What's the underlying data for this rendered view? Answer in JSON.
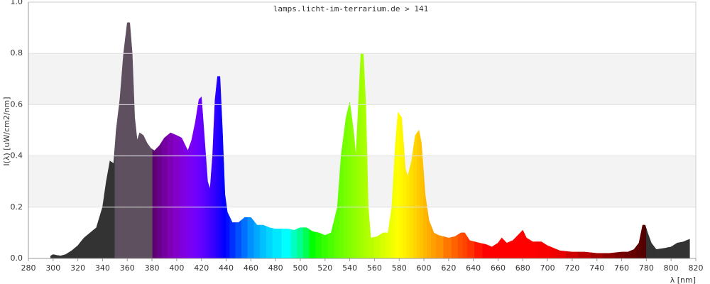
{
  "chart_data": {
    "type": "area",
    "title": "lamps.licht-im-terrarium.de > 141",
    "x_label": "λ [nm]",
    "y_label": "I(λ)  [uW/cm2/nm]",
    "xlim": [
      280,
      820
    ],
    "xticks": [
      280,
      300,
      320,
      340,
      360,
      380,
      400,
      420,
      440,
      460,
      480,
      500,
      520,
      540,
      560,
      580,
      600,
      620,
      640,
      660,
      680,
      700,
      720,
      740,
      760,
      780,
      800,
      820
    ],
    "ylim": [
      0,
      1
    ],
    "yticks": [
      {
        "value": 0,
        "label": "0.0"
      },
      0.2,
      0.4,
      0.6,
      0.8,
      {
        "value": 1,
        "label": "1.0"
      }
    ],
    "grid": true,
    "x": [
      298,
      300,
      303,
      306,
      310,
      315,
      320,
      325,
      330,
      335,
      340,
      343,
      346,
      349,
      351,
      354,
      357,
      360,
      362,
      364,
      366,
      368,
      370,
      373,
      376,
      379,
      382,
      386,
      390,
      395,
      400,
      404,
      407,
      409,
      412,
      415,
      418,
      420,
      422,
      425,
      427,
      429,
      431,
      433,
      435,
      437,
      439,
      441,
      445,
      450,
      455,
      460,
      465,
      470,
      475,
      480,
      490,
      495,
      500,
      505,
      510,
      515,
      520,
      525,
      530,
      533,
      537,
      540,
      543,
      545,
      547,
      549,
      551,
      553,
      555,
      557,
      562,
      567,
      571,
      574,
      577,
      579,
      582,
      585,
      587,
      590,
      593,
      596,
      598,
      601,
      604,
      608,
      612,
      620,
      625,
      630,
      633,
      637,
      645,
      650,
      655,
      660,
      663,
      667,
      672,
      678,
      680,
      683,
      688,
      695,
      700,
      705,
      710,
      720,
      730,
      740,
      750,
      760,
      765,
      770,
      774,
      777,
      779,
      781,
      784,
      788,
      795,
      800,
      805,
      810,
      815
    ],
    "values": [
      0.01,
      0.015,
      0.012,
      0.01,
      0.015,
      0.03,
      0.05,
      0.08,
      0.1,
      0.12,
      0.2,
      0.3,
      0.38,
      0.37,
      0.5,
      0.62,
      0.8,
      0.92,
      0.92,
      0.8,
      0.55,
      0.46,
      0.49,
      0.48,
      0.45,
      0.43,
      0.42,
      0.44,
      0.47,
      0.49,
      0.48,
      0.47,
      0.44,
      0.42,
      0.46,
      0.53,
      0.62,
      0.63,
      0.5,
      0.3,
      0.27,
      0.4,
      0.62,
      0.71,
      0.71,
      0.5,
      0.25,
      0.18,
      0.14,
      0.14,
      0.16,
      0.16,
      0.13,
      0.13,
      0.12,
      0.115,
      0.115,
      0.11,
      0.12,
      0.12,
      0.105,
      0.1,
      0.09,
      0.1,
      0.2,
      0.4,
      0.55,
      0.61,
      0.5,
      0.4,
      0.6,
      0.8,
      0.8,
      0.6,
      0.2,
      0.08,
      0.085,
      0.1,
      0.1,
      0.2,
      0.45,
      0.57,
      0.55,
      0.35,
      0.32,
      0.38,
      0.48,
      0.5,
      0.45,
      0.25,
      0.15,
      0.1,
      0.09,
      0.08,
      0.085,
      0.1,
      0.1,
      0.07,
      0.06,
      0.055,
      0.045,
      0.06,
      0.08,
      0.06,
      0.07,
      0.1,
      0.11,
      0.08,
      0.065,
      0.065,
      0.05,
      0.04,
      0.03,
      0.025,
      0.025,
      0.02,
      0.02,
      0.025,
      0.025,
      0.035,
      0.06,
      0.13,
      0.13,
      0.1,
      0.06,
      0.035,
      0.04,
      0.045,
      0.06,
      0.065,
      0.075
    ],
    "colors": [
      "#333333",
      "#333333",
      "#333333",
      "#333333",
      "#333333",
      "#333333",
      "#333333",
      "#333333",
      "#333333",
      "#333333",
      "#333333",
      "#333333",
      "#333333",
      "#333333",
      "#5f5060",
      "#5f5060",
      "#5f5060",
      "#5f5060",
      "#5f5060",
      "#5f5060",
      "#5f5060",
      "#5f5060",
      "#5f5060",
      "#5f5060",
      "#5f5060",
      "#5f5060",
      "#5c0072",
      "#68008a",
      "#74009f",
      "#7d00b4",
      "#8200c8",
      "#8000d8",
      "#7e00e4",
      "#7c00ea",
      "#7800f3",
      "#7300fa",
      "#6a00ff",
      "#6600ff",
      "#5c00ff",
      "#5000ff",
      "#4500ff",
      "#3c00ff",
      "#3200ff",
      "#2600ff",
      "#1a00ff",
      "#0c00ff",
      "#0000ff",
      "#0010ff",
      "#0030ff",
      "#0050ff",
      "#0070ff",
      "#0090ff",
      "#00a8ff",
      "#00c0ff",
      "#00d4ff",
      "#00e8ff",
      "#00ffff",
      "#00ffc0",
      "#00ff90",
      "#00ff50",
      "#00ff00",
      "#1fff00",
      "#36ff00",
      "#4aff00",
      "#5eff00",
      "#69ff00",
      "#78ff00",
      "#81ff00",
      "#8bff00",
      "#92ff00",
      "#98ff00",
      "#9eff00",
      "#a5ff00",
      "#abff00",
      "#b1ff00",
      "#b7ff00",
      "#c6ff00",
      "#d6ff00",
      "#e4ff00",
      "#edff00",
      "#f7ff00",
      "#ffff00",
      "#fff600",
      "#ffef00",
      "#ffe800",
      "#ffdf00",
      "#ffd500",
      "#ffca00",
      "#ffc300",
      "#ffb800",
      "#ffad00",
      "#ffa000",
      "#ff9200",
      "#ff7700",
      "#ff6300",
      "#ff4f00",
      "#ff4300",
      "#ff3300",
      "#ff1500",
      "#ff0000",
      "#ff0000",
      "#ff0000",
      "#ff0000",
      "#ff0000",
      "#ff0000",
      "#ff0000",
      "#ff0000",
      "#ff0000",
      "#ff0000",
      "#f80000",
      "#f80000",
      "#f00000",
      "#e80000",
      "#d00000",
      "#b80000",
      "#a00000",
      "#8c0000",
      "#780000",
      "#6e0000",
      "#640000",
      "#5c0000",
      "#560000",
      "#500000",
      "#333333",
      "#333333",
      "#333333",
      "#333333",
      "#333333",
      "#333333",
      "#333333",
      "#333333"
    ]
  }
}
